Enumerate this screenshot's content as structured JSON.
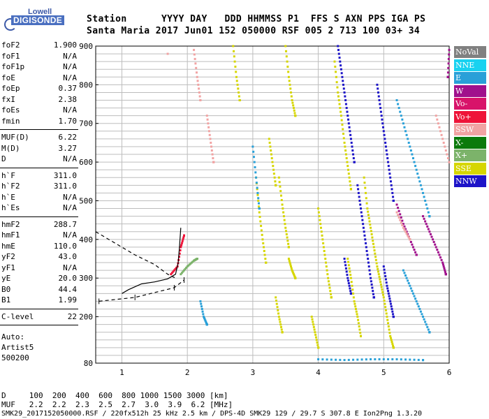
{
  "logo": {
    "brand": "Lowell",
    "name": "DIGISONDE"
  },
  "header": {
    "line1": "Station      YYYY DAY   DDD HHMMSS P1  FFS S AXN PPS IGA PS",
    "line2": "Santa Maria 2017 Jun01 152 050000 RSF 005 2 713 100 03+ 34"
  },
  "params": {
    "g1": [
      {
        "label": "foF2",
        "value": "1.900"
      },
      {
        "label": "foF1",
        "value": "N/A"
      },
      {
        "label": "foF1p",
        "value": "N/A"
      },
      {
        "label": "foE",
        "value": "N/A"
      },
      {
        "label": "foEp",
        "value": "0.37"
      },
      {
        "label": "fxI",
        "value": "2.38"
      },
      {
        "label": "foEs",
        "value": "N/A"
      },
      {
        "label": "fmin",
        "value": "1.70"
      }
    ],
    "g2": [
      {
        "label": "MUF(D)",
        "value": "6.22"
      },
      {
        "label": "M(D)",
        "value": "3.27"
      },
      {
        "label": "D",
        "value": "N/A"
      }
    ],
    "g3": [
      {
        "label": "h`F",
        "value": "311.0"
      },
      {
        "label": "h`F2",
        "value": "311.0"
      },
      {
        "label": "h`E",
        "value": "N/A"
      },
      {
        "label": "h`Es",
        "value": "N/A"
      }
    ],
    "g4": [
      {
        "label": "hmF2",
        "value": "288.7"
      },
      {
        "label": "hmF1",
        "value": "N/A"
      },
      {
        "label": "hmE",
        "value": "110.0"
      },
      {
        "label": "yF2",
        "value": "43.0"
      },
      {
        "label": "yF1",
        "value": "N/A"
      },
      {
        "label": "yE",
        "value": "20.0"
      },
      {
        "label": "B0",
        "value": "44.4"
      },
      {
        "label": "B1",
        "value": "1.99"
      }
    ],
    "g5": [
      {
        "label": "C-level",
        "value": "22"
      }
    ],
    "auto": [
      "Auto:",
      "Artist5",
      "500200"
    ]
  },
  "legend": [
    {
      "label": "NoVal",
      "color": "#808080"
    },
    {
      "label": "NNE",
      "color": "#19d2f0"
    },
    {
      "label": "E",
      "color": "#29a0d8"
    },
    {
      "label": "W",
      "color": "#a0108c"
    },
    {
      "label": "Vo-",
      "color": "#d8136a"
    },
    {
      "label": "Vo+",
      "color": "#ee1439"
    },
    {
      "label": "SSW",
      "color": "#f1a3a3"
    },
    {
      "label": "X-",
      "color": "#0b7a0b"
    },
    {
      "label": "X+",
      "color": "#7cb36a"
    },
    {
      "label": "SSE",
      "color": "#d6d600"
    },
    {
      "label": "NNW",
      "color": "#1d14c8"
    }
  ],
  "footer": {
    "line1": "D     100  200  400  600  800 1000 1500 3000 [km]",
    "line2": "MUF   2.2  2.2  2.3  2.5  2.7  3.0  3.9  6.2 [MHz]",
    "line3": "SMK29_2017152050000.RSF / 220fx512h 25 kHz 2.5 km / DPS-4D SMK29 129 / 29.7 S 307.8 E Ion2Png 1.3.20"
  },
  "chart_data": {
    "type": "scatter",
    "title": "",
    "xlabel": "",
    "ylabel": "",
    "xlim": [
      0.6,
      6.0
    ],
    "ylim": [
      80,
      900
    ],
    "x_ticks": [
      1,
      2,
      3,
      4,
      5,
      6
    ],
    "y_ticks": [
      80,
      200,
      300,
      400,
      500,
      600,
      700,
      800,
      900
    ],
    "x_gridlines": [
      1,
      2,
      3,
      4,
      5,
      6
    ],
    "y_gridlines": [
      100,
      120,
      140,
      160,
      180,
      200,
      220,
      240,
      260,
      280,
      300,
      320,
      340,
      360,
      380,
      400,
      420,
      440,
      460,
      480,
      500,
      520,
      540,
      560,
      580,
      600,
      620,
      640,
      660,
      680,
      700,
      720,
      740,
      760,
      780,
      800,
      820,
      840,
      860,
      880
    ],
    "grid": true,
    "series": [
      {
        "name": "SSE",
        "color": "#d6d600",
        "traces": [
          [
            [
              2.7,
              900
            ],
            [
              2.75,
              820
            ],
            [
              2.8,
              760
            ]
          ],
          [
            [
              3.05,
              560
            ],
            [
              3.1,
              470
            ],
            [
              3.15,
              400
            ],
            [
              3.2,
              340
            ]
          ],
          [
            [
              3.25,
              660
            ],
            [
              3.3,
              600
            ],
            [
              3.35,
              540
            ]
          ],
          [
            [
              3.4,
              560
            ],
            [
              3.45,
              490
            ],
            [
              3.5,
              430
            ],
            [
              3.55,
              380
            ]
          ],
          [
            [
              3.5,
              900
            ],
            [
              3.55,
              820
            ],
            [
              3.6,
              760
            ],
            [
              3.65,
              720
            ]
          ],
          [
            [
              3.55,
              350
            ],
            [
              3.6,
              320
            ],
            [
              3.65,
              300
            ]
          ],
          [
            [
              4.0,
              480
            ],
            [
              4.05,
              420
            ],
            [
              4.1,
              360
            ],
            [
              4.15,
              300
            ],
            [
              4.2,
              250
            ]
          ],
          [
            [
              4.25,
              860
            ],
            [
              4.3,
              780
            ],
            [
              4.35,
              720
            ],
            [
              4.4,
              650
            ],
            [
              4.45,
              590
            ],
            [
              4.5,
              530
            ]
          ],
          [
            [
              4.45,
              350
            ],
            [
              4.5,
              300
            ],
            [
              4.55,
              240
            ],
            [
              4.6,
              200
            ],
            [
              4.65,
              150
            ]
          ],
          [
            [
              4.7,
              560
            ],
            [
              4.75,
              480
            ],
            [
              4.8,
              430
            ],
            [
              4.85,
              380
            ],
            [
              4.9,
              330
            ],
            [
              4.95,
              290
            ],
            [
              5.0,
              250
            ],
            [
              5.05,
              200
            ],
            [
              5.1,
              150
            ],
            [
              5.15,
              120
            ]
          ],
          [
            [
              3.35,
              250
            ],
            [
              3.4,
              200
            ],
            [
              3.45,
              160
            ]
          ],
          [
            [
              3.9,
              200
            ],
            [
              3.95,
              160
            ],
            [
              4.0,
              120
            ]
          ]
        ]
      },
      {
        "name": "NNW",
        "color": "#1d14c8",
        "traces": [
          [
            [
              4.3,
              900
            ],
            [
              4.35,
              840
            ],
            [
              4.4,
              780
            ],
            [
              4.45,
              720
            ],
            [
              4.5,
              660
            ],
            [
              4.55,
              600
            ]
          ],
          [
            [
              4.6,
              540
            ],
            [
              4.65,
              480
            ],
            [
              4.7,
              420
            ],
            [
              4.75,
              360
            ],
            [
              4.8,
              300
            ],
            [
              4.85,
              250
            ]
          ],
          [
            [
              4.9,
              800
            ],
            [
              4.95,
              740
            ],
            [
              5.0,
              680
            ],
            [
              5.05,
              620
            ],
            [
              5.1,
              560
            ],
            [
              5.15,
              500
            ]
          ],
          [
            [
              4.4,
              350
            ],
            [
              4.45,
              300
            ],
            [
              4.5,
              260
            ]
          ],
          [
            [
              5.0,
              330
            ],
            [
              5.05,
              280
            ],
            [
              5.1,
              240
            ],
            [
              5.15,
              200
            ]
          ]
        ]
      },
      {
        "name": "E",
        "color": "#29a0d8",
        "traces": [
          [
            [
              3.0,
              640
            ],
            [
              3.05,
              560
            ],
            [
              3.1,
              480
            ]
          ],
          [
            [
              2.2,
              240
            ],
            [
              2.25,
              200
            ],
            [
              2.3,
              180
            ]
          ],
          [
            [
              5.2,
              760
            ],
            [
              5.3,
              700
            ],
            [
              5.4,
              640
            ],
            [
              5.5,
              580
            ],
            [
              5.6,
              520
            ],
            [
              5.7,
              460
            ]
          ],
          [
            [
              5.3,
              320
            ],
            [
              5.4,
              280
            ],
            [
              5.5,
              240
            ],
            [
              5.6,
              200
            ],
            [
              5.7,
              160
            ]
          ],
          [
            [
              4.0,
              90
            ],
            [
              4.4,
              88
            ],
            [
              4.8,
              90
            ],
            [
              5.2,
              90
            ],
            [
              5.6,
              88
            ]
          ]
        ]
      },
      {
        "name": "W",
        "color": "#a0108c",
        "traces": [
          [
            [
              5.2,
              490
            ],
            [
              5.3,
              440
            ],
            [
              5.4,
              400
            ],
            [
              5.5,
              360
            ]
          ],
          [
            [
              5.6,
              460
            ],
            [
              5.7,
              420
            ],
            [
              5.8,
              380
            ],
            [
              5.9,
              340
            ],
            [
              5.95,
              310
            ]
          ],
          [
            [
              6.0,
              890
            ],
            [
              5.98,
              820
            ]
          ]
        ]
      },
      {
        "name": "SSW",
        "color": "#f1a3a3",
        "traces": [
          [
            [
              2.1,
              890
            ],
            [
              2.15,
              820
            ],
            [
              2.2,
              760
            ]
          ],
          [
            [
              2.3,
              720
            ],
            [
              2.35,
              660
            ],
            [
              2.4,
              600
            ]
          ],
          [
            [
              1.7,
              880
            ]
          ],
          [
            [
              5.2,
              470
            ],
            [
              5.3,
              430
            ],
            [
              5.4,
              400
            ]
          ],
          [
            [
              5.8,
              720
            ],
            [
              5.9,
              660
            ],
            [
              6.0,
              600
            ]
          ]
        ]
      },
      {
        "name": "X+",
        "color": "#7cb36a",
        "traces": [
          [
            [
              1.9,
              310
            ],
            [
              2.0,
              330
            ],
            [
              2.1,
              345
            ],
            [
              2.15,
              350
            ]
          ]
        ]
      },
      {
        "name": "Vo+",
        "color": "#ee1439",
        "traces": [
          [
            [
              1.75,
              310
            ],
            [
              1.85,
              330
            ],
            [
              1.9,
              380
            ],
            [
              1.95,
              410
            ]
          ]
        ]
      }
    ],
    "profile_curves": [
      {
        "name": "profile",
        "style": "solid",
        "points": [
          [
            1.9,
            430
          ],
          [
            1.88,
            380
          ],
          [
            1.86,
            340
          ],
          [
            1.82,
            310
          ],
          [
            1.7,
            298
          ],
          [
            1.5,
            290
          ],
          [
            1.3,
            285
          ],
          [
            1.1,
            270
          ],
          [
            1.0,
            260
          ]
        ]
      },
      {
        "name": "profile-extension",
        "style": "dashed",
        "points": [
          [
            0.6,
            420
          ],
          [
            0.9,
            390
          ],
          [
            1.2,
            360
          ],
          [
            1.5,
            335
          ],
          [
            1.7,
            310
          ],
          [
            1.82,
            300
          ]
        ]
      },
      {
        "name": "hmF2-bar",
        "style": "errorbar",
        "points": [
          [
            0.65,
            240
          ],
          [
            1.2,
            250
          ],
          [
            1.8,
            275
          ],
          [
            1.95,
            295
          ]
        ]
      }
    ]
  }
}
